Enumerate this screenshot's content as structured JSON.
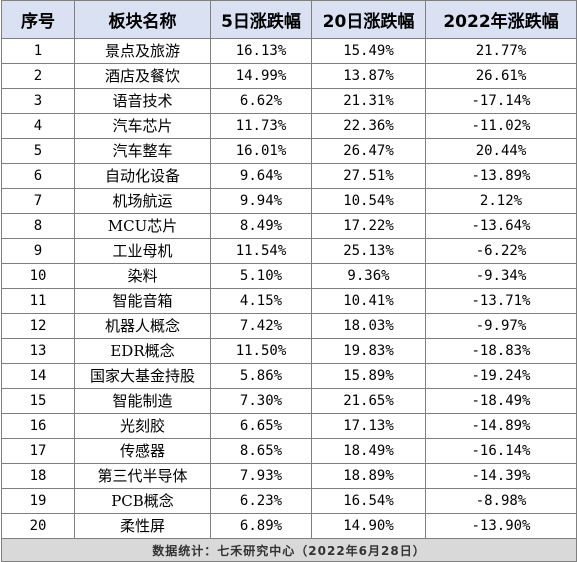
{
  "table": {
    "headers": {
      "index": "序号",
      "sector": "板块名称",
      "change_5d": "5日涨跌幅",
      "change_20d": "20日涨跌幅",
      "change_2022": "2022年涨跌幅"
    },
    "rows": [
      {
        "index": "1",
        "sector": "景点及旅游",
        "change_5d": "16.13%",
        "change_20d": "15.49%",
        "change_2022": "21.77%"
      },
      {
        "index": "2",
        "sector": "酒店及餐饮",
        "change_5d": "14.99%",
        "change_20d": "13.87%",
        "change_2022": "26.61%"
      },
      {
        "index": "3",
        "sector": "语音技术",
        "change_5d": "6.62%",
        "change_20d": "21.31%",
        "change_2022": "-17.14%"
      },
      {
        "index": "4",
        "sector": "汽车芯片",
        "change_5d": "11.73%",
        "change_20d": "22.36%",
        "change_2022": "-11.02%"
      },
      {
        "index": "5",
        "sector": "汽车整车",
        "change_5d": "16.01%",
        "change_20d": "26.47%",
        "change_2022": "20.44%"
      },
      {
        "index": "6",
        "sector": "自动化设备",
        "change_5d": "9.64%",
        "change_20d": "27.51%",
        "change_2022": "-13.89%"
      },
      {
        "index": "7",
        "sector": "机场航运",
        "change_5d": "9.94%",
        "change_20d": "10.54%",
        "change_2022": "2.12%"
      },
      {
        "index": "8",
        "sector": "MCU芯片",
        "change_5d": "8.49%",
        "change_20d": "17.22%",
        "change_2022": "-13.64%"
      },
      {
        "index": "9",
        "sector": "工业母机",
        "change_5d": "11.54%",
        "change_20d": "25.13%",
        "change_2022": "-6.22%"
      },
      {
        "index": "10",
        "sector": "染料",
        "change_5d": "5.10%",
        "change_20d": "9.36%",
        "change_2022": "-9.34%"
      },
      {
        "index": "11",
        "sector": "智能音箱",
        "change_5d": "4.15%",
        "change_20d": "10.41%",
        "change_2022": "-13.71%"
      },
      {
        "index": "12",
        "sector": "机器人概念",
        "change_5d": "7.42%",
        "change_20d": "18.03%",
        "change_2022": "-9.97%"
      },
      {
        "index": "13",
        "sector": "EDR概念",
        "change_5d": "11.50%",
        "change_20d": "19.83%",
        "change_2022": "-18.83%"
      },
      {
        "index": "14",
        "sector": "国家大基金持股",
        "change_5d": "5.86%",
        "change_20d": "15.89%",
        "change_2022": "-19.24%"
      },
      {
        "index": "15",
        "sector": "智能制造",
        "change_5d": "7.30%",
        "change_20d": "21.65%",
        "change_2022": "-18.49%"
      },
      {
        "index": "16",
        "sector": "光刻胶",
        "change_5d": "6.65%",
        "change_20d": "17.13%",
        "change_2022": "-14.89%"
      },
      {
        "index": "17",
        "sector": "传感器",
        "change_5d": "8.65%",
        "change_20d": "18.49%",
        "change_2022": "-16.14%"
      },
      {
        "index": "18",
        "sector": "第三代半导体",
        "change_5d": "7.93%",
        "change_20d": "18.89%",
        "change_2022": "-14.39%"
      },
      {
        "index": "19",
        "sector": "PCB概念",
        "change_5d": "6.23%",
        "change_20d": "16.54%",
        "change_2022": "-8.98%"
      },
      {
        "index": "20",
        "sector": "柔性屏",
        "change_5d": "6.89%",
        "change_20d": "14.90%",
        "change_2022": "-13.90%"
      }
    ],
    "footer": "数据统计：七禾研究中心（2022年6月28日）"
  },
  "colors": {
    "header_bg": "#d9e1f2",
    "footer_bg": "#d9d9d9",
    "border": "#7f7f7f"
  }
}
